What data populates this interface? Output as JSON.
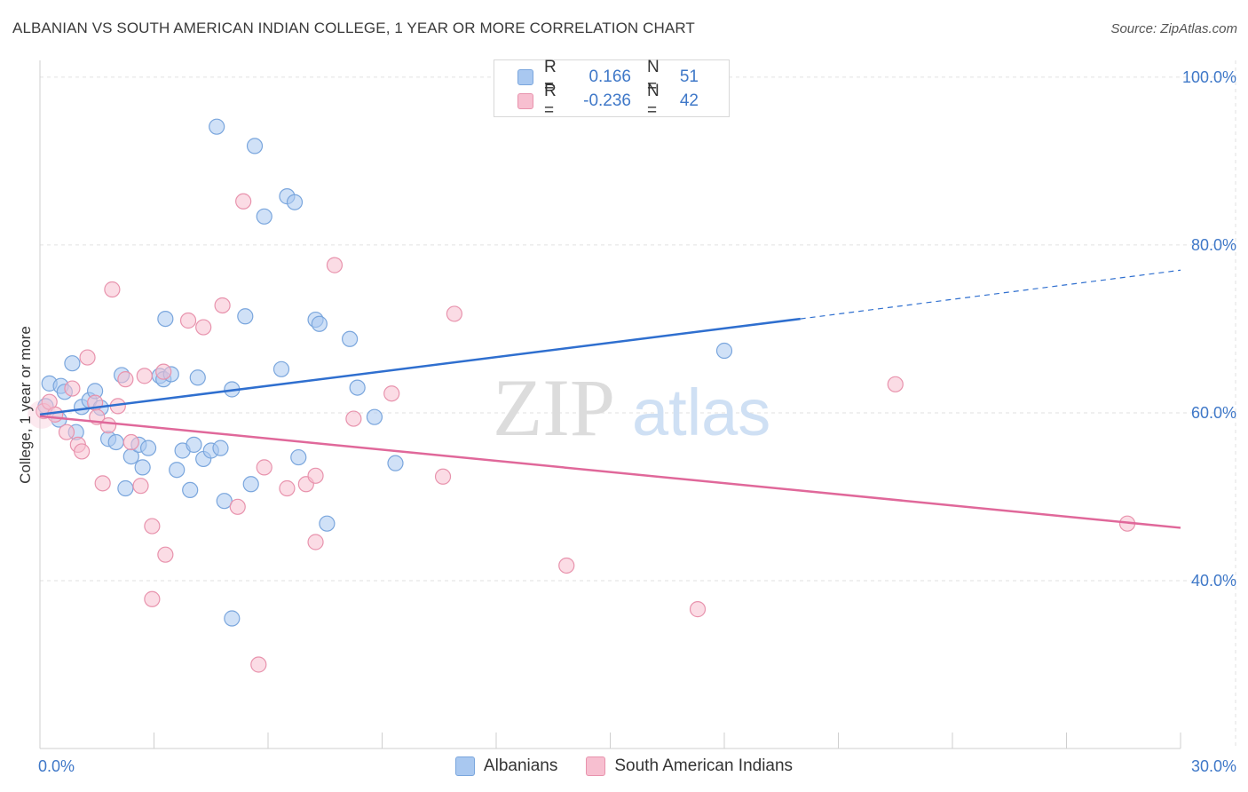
{
  "title": "ALBANIAN VS SOUTH AMERICAN INDIAN COLLEGE, 1 YEAR OR MORE CORRELATION CHART",
  "source": "Source: ZipAtlas.com",
  "watermark": {
    "zip": "ZIP",
    "atlas": "atlas"
  },
  "legend": {
    "rows": [
      {
        "r_label": "R =",
        "r_value": "0.166",
        "n_label": "N =",
        "n_value": "51",
        "color": "#a9c8f0",
        "border": "#7aa6dd"
      },
      {
        "r_label": "R =",
        "r_value": "-0.236",
        "n_label": "N =",
        "n_value": "42",
        "color": "#f7bfd0",
        "border": "#e893ad"
      }
    ]
  },
  "chart_data": {
    "type": "scatter",
    "title": "ALBANIAN VS SOUTH AMERICAN INDIAN COLLEGE, 1 YEAR OR MORE CORRELATION CHART",
    "xlabel": "",
    "ylabel": "College, 1 year or more",
    "xlim": [
      0,
      30
    ],
    "ylim": [
      20,
      102
    ],
    "x_tick_labels": [
      "0.0%",
      "30.0%"
    ],
    "y_ticks": [
      40,
      60,
      80,
      100
    ],
    "y_tick_labels": [
      "40.0%",
      "60.0%",
      "80.0%",
      "100.0%"
    ],
    "grid": true,
    "legend_position": "top-center",
    "series": [
      {
        "name": "Albanians",
        "color": "#a9c8f0",
        "stroke": "#7aa6dd",
        "trend": {
          "x0": 0,
          "y0": 59.8,
          "x1": 20.0,
          "y1": 71.2,
          "dashed_to_x": 30,
          "dashed_to_y": 77.0,
          "color": "#2f6fcf"
        },
        "points": [
          [
            0.25,
            63.5
          ],
          [
            0.5,
            59.2
          ],
          [
            0.55,
            63.2
          ],
          [
            0.65,
            62.5
          ],
          [
            0.85,
            65.9
          ],
          [
            1.1,
            60.7
          ],
          [
            1.3,
            61.5
          ],
          [
            1.45,
            62.6
          ],
          [
            1.6,
            60.6
          ],
          [
            0.95,
            57.7
          ],
          [
            1.8,
            56.9
          ],
          [
            2.0,
            56.5
          ],
          [
            2.15,
            64.5
          ],
          [
            2.25,
            51.0
          ],
          [
            2.4,
            54.8
          ],
          [
            2.6,
            56.2
          ],
          [
            2.7,
            53.5
          ],
          [
            2.85,
            55.8
          ],
          [
            3.15,
            64.4
          ],
          [
            3.25,
            64.0
          ],
          [
            3.3,
            71.2
          ],
          [
            3.45,
            64.6
          ],
          [
            3.6,
            53.2
          ],
          [
            3.75,
            55.5
          ],
          [
            3.95,
            50.8
          ],
          [
            4.05,
            56.2
          ],
          [
            4.15,
            64.2
          ],
          [
            4.3,
            54.5
          ],
          [
            4.5,
            55.5
          ],
          [
            4.75,
            55.8
          ],
          [
            4.85,
            49.5
          ],
          [
            5.05,
            62.8
          ],
          [
            5.05,
            35.5
          ],
          [
            5.4,
            71.5
          ],
          [
            5.65,
            91.8
          ],
          [
            5.9,
            83.4
          ],
          [
            5.55,
            51.5
          ],
          [
            6.35,
            65.2
          ],
          [
            6.5,
            85.8
          ],
          [
            6.7,
            85.1
          ],
          [
            6.8,
            54.7
          ],
          [
            7.25,
            71.1
          ],
          [
            7.35,
            70.6
          ],
          [
            7.55,
            46.8
          ],
          [
            8.15,
            68.8
          ],
          [
            8.35,
            63.0
          ],
          [
            8.8,
            59.5
          ],
          [
            9.35,
            54.0
          ],
          [
            4.65,
            94.1
          ],
          [
            18.0,
            67.4
          ],
          [
            0.15,
            60.8
          ]
        ]
      },
      {
        "name": "South American Indians",
        "color": "#f7bfd0",
        "stroke": "#e893ad",
        "trend": {
          "x0": 0,
          "y0": 59.6,
          "x1": 30,
          "y1": 46.3,
          "color": "#e0689a"
        },
        "points": [
          [
            0.1,
            60.2
          ],
          [
            0.25,
            61.3
          ],
          [
            0.4,
            59.8
          ],
          [
            0.7,
            57.7
          ],
          [
            0.85,
            62.9
          ],
          [
            1.0,
            56.2
          ],
          [
            1.1,
            55.4
          ],
          [
            1.25,
            66.6
          ],
          [
            1.45,
            61.2
          ],
          [
            1.5,
            59.5
          ],
          [
            1.65,
            51.6
          ],
          [
            1.8,
            58.5
          ],
          [
            1.9,
            74.7
          ],
          [
            2.05,
            60.8
          ],
          [
            2.25,
            64.0
          ],
          [
            2.4,
            56.5
          ],
          [
            2.65,
            51.3
          ],
          [
            2.75,
            64.4
          ],
          [
            2.95,
            46.5
          ],
          [
            2.95,
            37.8
          ],
          [
            3.25,
            64.9
          ],
          [
            3.3,
            43.1
          ],
          [
            3.9,
            71.0
          ],
          [
            4.3,
            70.2
          ],
          [
            4.8,
            72.8
          ],
          [
            5.2,
            48.8
          ],
          [
            5.35,
            85.2
          ],
          [
            5.75,
            30.0
          ],
          [
            5.9,
            53.5
          ],
          [
            6.5,
            51.0
          ],
          [
            7.0,
            51.5
          ],
          [
            7.25,
            52.5
          ],
          [
            7.25,
            44.6
          ],
          [
            7.75,
            77.6
          ],
          [
            8.25,
            59.3
          ],
          [
            9.25,
            62.3
          ],
          [
            10.6,
            52.4
          ],
          [
            10.9,
            71.8
          ],
          [
            13.85,
            41.8
          ],
          [
            17.3,
            36.6
          ],
          [
            22.5,
            63.4
          ],
          [
            28.6,
            46.8
          ]
        ]
      }
    ]
  }
}
